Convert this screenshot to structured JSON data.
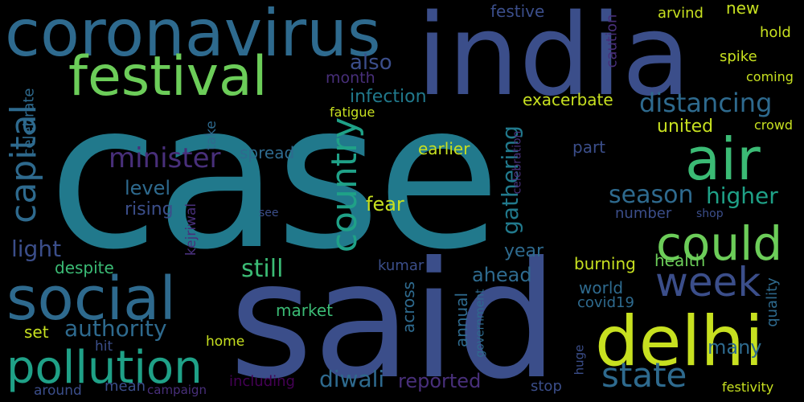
{
  "palette": {
    "background": "#000000",
    "teal": "#21798c",
    "indigo": "#3b4e8a",
    "slate": "#2e6a8e",
    "green": "#6ccd59",
    "lime": "#c7e020",
    "mint": "#3bbb75",
    "sea": "#1fa187",
    "purple": "#482f7a",
    "deep": "#440154"
  },
  "words": [
    "case",
    "said",
    "india",
    "coronavirus",
    "festival",
    "air",
    "delhi",
    "social",
    "pollution",
    "could",
    "week",
    "state",
    "capital",
    "country",
    "distancing",
    "minister",
    "season",
    "higher",
    "authority",
    "still",
    "light",
    "gathering",
    "level",
    "rising",
    "infection",
    "also",
    "united",
    "earlier",
    "fear",
    "spread",
    "month",
    "exacerbate",
    "part",
    "fatigue",
    "celebrate",
    "take",
    "festive",
    "new",
    "hold",
    "spike",
    "coming",
    "arvind",
    "caution",
    "crowd",
    "celebration",
    "number",
    "see",
    "shop",
    "kejriwal",
    "despite",
    "kumar",
    "ahead",
    "year",
    "burning",
    "health",
    "world",
    "covid19",
    "quality",
    "market",
    "across",
    "annual",
    "set",
    "hit",
    "home",
    "many",
    "including",
    "diwali",
    "reported",
    "government",
    "huge",
    "stop",
    "festivity",
    "around",
    "mean",
    "campaign"
  ]
}
